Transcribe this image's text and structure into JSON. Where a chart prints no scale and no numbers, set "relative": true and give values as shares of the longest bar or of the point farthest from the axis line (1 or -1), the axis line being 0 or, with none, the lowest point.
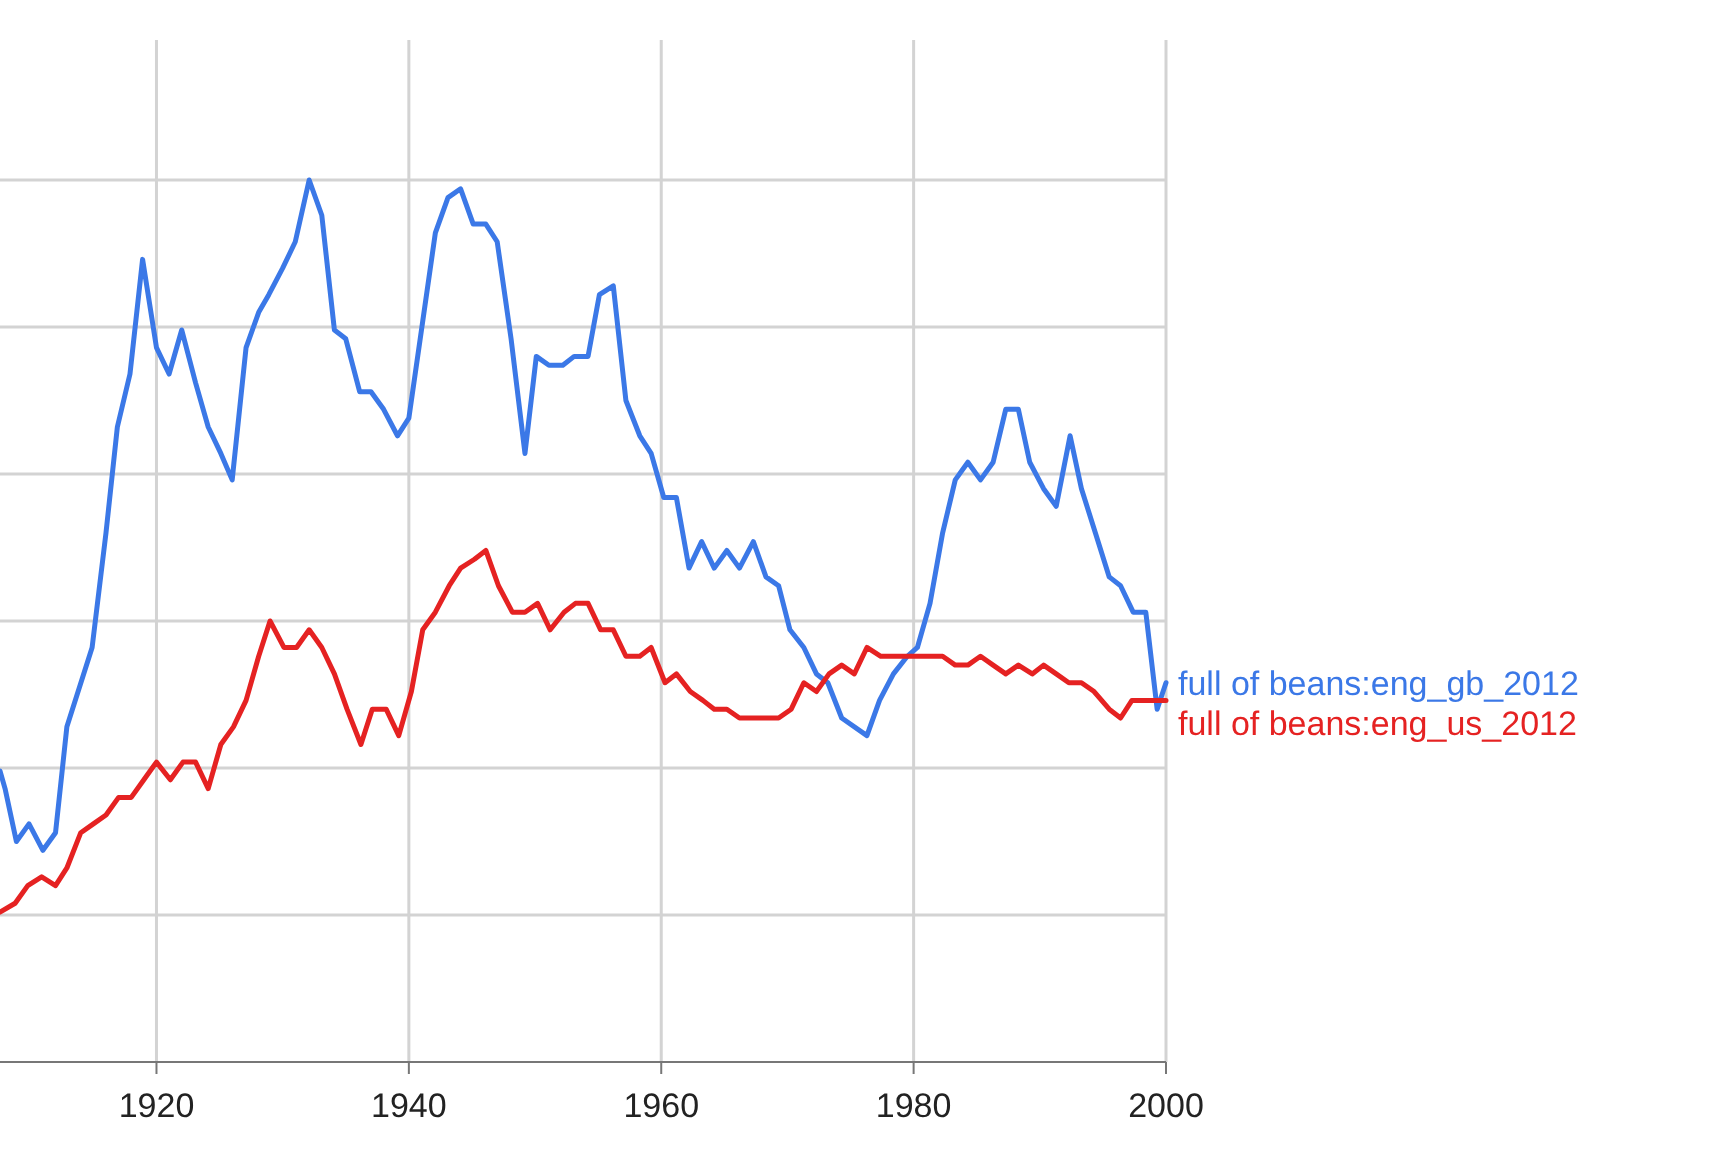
{
  "chart_data": {
    "type": "line",
    "relative": true,
    "grid": true,
    "legend": false,
    "marker": "none",
    "line_style": "solid",
    "xlim": [
      1907.6,
      2000
    ],
    "xticks": [
      1920,
      1940,
      1960,
      1980,
      2000
    ],
    "series": [
      {
        "name": "full of beans:eng_gb_2012",
        "color": "#3b78e7",
        "x": [
          1907.6,
          1908.0,
          1908.9,
          1909.9,
          1911.0,
          1912.0,
          1912.9,
          1914.9,
          1916.0,
          1916.9,
          1917.9,
          1918.9,
          1920.0,
          1921.0,
          1922.0,
          1923.1,
          1924.1,
          1925.1,
          1926.0,
          1927.1,
          1928.1,
          1928.9,
          1930.0,
          1931.0,
          1932.1,
          1933.1,
          1934.1,
          1935.0,
          1936.1,
          1937.0,
          1938.0,
          1939.1,
          1940.0,
          1941.1,
          1942.1,
          1943.1,
          1944.1,
          1945.1,
          1946.1,
          1947.0,
          1948.1,
          1949.2,
          1950.1,
          1951.1,
          1952.2,
          1953.1,
          1954.2,
          1955.1,
          1956.2,
          1957.2,
          1958.3,
          1959.2,
          1960.2,
          1961.2,
          1962.2,
          1963.2,
          1964.2,
          1965.2,
          1966.2,
          1967.3,
          1968.3,
          1969.3,
          1970.2,
          1971.3,
          1972.3,
          1973.2,
          1974.3,
          1976.3,
          1977.3,
          1978.4,
          1979.5,
          1980.3,
          1981.3,
          1982.3,
          1983.3,
          1984.3,
          1985.3,
          1986.3,
          1987.3,
          1988.3,
          1989.2,
          1990.3,
          1991.3,
          1992.4,
          1993.3,
          1994.4,
          1995.5,
          1996.4,
          1997.4,
          1998.4,
          1999.3,
          2000
        ],
        "values": [
          0.33,
          0.31,
          0.25,
          0.27,
          0.24,
          0.26,
          0.38,
          0.47,
          0.6,
          0.72,
          0.78,
          0.91,
          0.81,
          0.78,
          0.83,
          0.77,
          0.72,
          0.69,
          0.66,
          0.81,
          0.85,
          0.87,
          0.9,
          0.93,
          1,
          0.96,
          0.83,
          0.82,
          0.76,
          0.76,
          0.74,
          0.71,
          0.73,
          0.84,
          0.94,
          0.98,
          0.99,
          0.95,
          0.95,
          0.93,
          0.82,
          0.69,
          0.8,
          0.79,
          0.79,
          0.8,
          0.8,
          0.87,
          0.88,
          0.75,
          0.71,
          0.69,
          0.64,
          0.64,
          0.56,
          0.59,
          0.56,
          0.58,
          0.56,
          0.59,
          0.55,
          0.54,
          0.49,
          0.47,
          0.44,
          0.43,
          0.39,
          0.37,
          0.41,
          0.44,
          0.46,
          0.47,
          0.52,
          0.6,
          0.66,
          0.68,
          0.66,
          0.68,
          0.74,
          0.74,
          0.68,
          0.65,
          0.63,
          0.71,
          0.65,
          0.6,
          0.55,
          0.54,
          0.51,
          0.51,
          0.4,
          0.43
        ]
      },
      {
        "name": "full of beans:eng_us_2012",
        "color": "#e52222",
        "x": [
          1907.6,
          1908.8,
          1909.8,
          1910.9,
          1912.0,
          1912.9,
          1914.0,
          1915.0,
          1916.0,
          1917.0,
          1918.0,
          1919.0,
          1920.0,
          1921.1,
          1922.1,
          1923.1,
          1924.1,
          1925.1,
          1926.1,
          1927.1,
          1928.1,
          1929.0,
          1930.1,
          1931.1,
          1932.1,
          1933.1,
          1934.1,
          1935.1,
          1936.2,
          1937.1,
          1938.2,
          1939.2,
          1940.2,
          1941.1,
          1942.1,
          1943.2,
          1944.1,
          1945.2,
          1946.1,
          1947.1,
          1948.2,
          1949.2,
          1950.2,
          1951.2,
          1952.3,
          1953.2,
          1954.2,
          1955.2,
          1956.2,
          1957.2,
          1958.3,
          1959.2,
          1960.3,
          1961.2,
          1962.3,
          1963.3,
          1964.2,
          1965.2,
          1966.2,
          1967.3,
          1968.2,
          1969.3,
          1970.3,
          1971.3,
          1972.3,
          1973.3,
          1974.3,
          1975.3,
          1976.3,
          1977.4,
          1978.5,
          1979.6,
          1980.4,
          1981.3,
          1982.3,
          1983.3,
          1984.3,
          1985.3,
          1986.3,
          1987.3,
          1988.3,
          1989.4,
          1990.3,
          1991.3,
          1992.3,
          1993.3,
          1994.3,
          1995.5,
          1996.4,
          1997.3,
          1998.4,
          1999.4,
          2000
        ],
        "values": [
          0.17,
          0.18,
          0.2,
          0.21,
          0.2,
          0.22,
          0.26,
          0.27,
          0.28,
          0.3,
          0.3,
          0.32,
          0.34,
          0.32,
          0.34,
          0.34,
          0.31,
          0.36,
          0.38,
          0.41,
          0.46,
          0.5,
          0.47,
          0.47,
          0.49,
          0.47,
          0.44,
          0.4,
          0.36,
          0.4,
          0.4,
          0.37,
          0.42,
          0.49,
          0.51,
          0.54,
          0.56,
          0.57,
          0.58,
          0.54,
          0.51,
          0.51,
          0.52,
          0.49,
          0.51,
          0.52,
          0.52,
          0.49,
          0.49,
          0.46,
          0.46,
          0.47,
          0.43,
          0.44,
          0.42,
          0.41,
          0.4,
          0.4,
          0.39,
          0.39,
          0.39,
          0.39,
          0.4,
          0.43,
          0.42,
          0.44,
          0.45,
          0.44,
          0.47,
          0.46,
          0.46,
          0.46,
          0.46,
          0.46,
          0.46,
          0.45,
          0.45,
          0.46,
          0.45,
          0.44,
          0.45,
          0.44,
          0.45,
          0.44,
          0.43,
          0.43,
          0.42,
          0.4,
          0.39,
          0.41,
          0.41,
          0.41,
          0.41
        ]
      }
    ]
  }
}
